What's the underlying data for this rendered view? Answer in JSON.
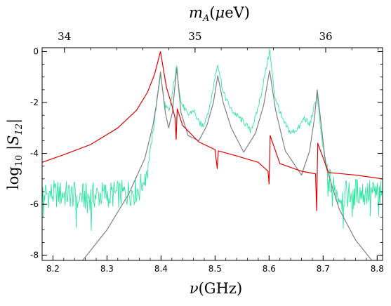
{
  "chart_data": {
    "type": "line",
    "xlabel": "ν(GHz)",
    "ylabel": "log10 |S12|",
    "top_xlabel": "m_A(μeV)",
    "xlim": [
      8.18,
      8.81
    ],
    "ylim": [
      -8.2,
      0.15
    ],
    "x_ticks": [
      8.2,
      8.3,
      8.4,
      8.5,
      8.6,
      8.7,
      8.8
    ],
    "x_tick_labels": [
      "8.2",
      "8.3",
      "8.4",
      "8.5",
      "8.6",
      "8.7",
      "8.8"
    ],
    "y_ticks": [
      0,
      -2,
      -4,
      -6,
      -8
    ],
    "y_tick_labels": [
      "0",
      "-2",
      "-4",
      "-6",
      "-8"
    ],
    "top_ticks_mueV": [
      34,
      35,
      36
    ],
    "top_tick_labels": [
      "34",
      "35",
      "36"
    ],
    "top_axis_GHz_per_mueV": 0.2418,
    "grid": false,
    "colors": {
      "measured": "#2ee6a0",
      "theory_gray": "#808080",
      "theory_red": "#e00000"
    },
    "resonances": [
      {
        "nu": 8.399,
        "peak_gray": -0.8,
        "peak_green": -0.9,
        "red_peak": 0.0,
        "red_kind": "peak"
      },
      {
        "nu": 8.429,
        "peak_gray": -0.65,
        "peak_green": -0.6,
        "red_min": -3.45,
        "red_max": -2.25
      },
      {
        "nu": 8.505,
        "peak_gray": -0.95,
        "peak_green": -0.45,
        "red_min": -4.6,
        "red_max": -3.9
      },
      {
        "nu": 8.601,
        "peak_gray": -0.75,
        "peak_green": 0.05,
        "red_min": -5.2,
        "red_max": -3.3
      },
      {
        "nu": 8.689,
        "peak_gray": -1.5,
        "peak_green": -1.7,
        "red_min": -6.25,
        "red_max": -3.6
      }
    ],
    "series": [
      {
        "key": "measured",
        "points": [
          [
            8.18,
            -5.6
          ],
          [
            8.22,
            -5.6
          ],
          [
            8.26,
            -5.7
          ],
          [
            8.3,
            -5.6
          ],
          [
            8.33,
            -5.6
          ],
          [
            8.36,
            -5.4
          ],
          [
            8.375,
            -4.6
          ],
          [
            8.385,
            -3.2
          ],
          [
            8.392,
            -2.0
          ],
          [
            8.399,
            -0.9
          ],
          [
            8.406,
            -2.0
          ],
          [
            8.415,
            -2.4
          ],
          [
            8.429,
            -0.6
          ],
          [
            8.437,
            -2.0
          ],
          [
            8.45,
            -2.5
          ],
          [
            8.46,
            -2.3
          ],
          [
            8.47,
            -2.8
          ],
          [
            8.478,
            -2.9
          ],
          [
            8.49,
            -2.2
          ],
          [
            8.505,
            -0.45
          ],
          [
            8.515,
            -1.6
          ],
          [
            8.53,
            -2.3
          ],
          [
            8.545,
            -2.6
          ],
          [
            8.555,
            -2.8
          ],
          [
            8.565,
            -3.1
          ],
          [
            8.575,
            -2.6
          ],
          [
            8.585,
            -1.7
          ],
          [
            8.601,
            0.05
          ],
          [
            8.61,
            -1.7
          ],
          [
            8.625,
            -2.7
          ],
          [
            8.64,
            -3.2
          ],
          [
            8.655,
            -3.0
          ],
          [
            8.665,
            -2.6
          ],
          [
            8.675,
            -2.9
          ],
          [
            8.689,
            -1.7
          ],
          [
            8.697,
            -3.4
          ],
          [
            8.71,
            -5.0
          ],
          [
            8.73,
            -5.7
          ],
          [
            8.76,
            -5.5
          ],
          [
            8.81,
            -5.6
          ]
        ]
      },
      {
        "key": "theory_gray",
        "points": [
          [
            8.255,
            -8.2
          ],
          [
            8.3,
            -7.0
          ],
          [
            8.34,
            -5.6
          ],
          [
            8.37,
            -4.2
          ],
          [
            8.385,
            -2.9
          ],
          [
            8.392,
            -2.0
          ],
          [
            8.399,
            -0.8
          ],
          [
            8.408,
            -2.4
          ],
          [
            8.414,
            -3.0
          ],
          [
            8.421,
            -2.4
          ],
          [
            8.429,
            -0.65
          ],
          [
            8.437,
            -2.4
          ],
          [
            8.45,
            -3.3
          ],
          [
            8.47,
            -3.5
          ],
          [
            8.485,
            -2.9
          ],
          [
            8.497,
            -2.0
          ],
          [
            8.505,
            -0.95
          ],
          [
            8.515,
            -2.0
          ],
          [
            8.53,
            -3.0
          ],
          [
            8.553,
            -3.95
          ],
          [
            8.575,
            -3.2
          ],
          [
            8.59,
            -2.1
          ],
          [
            8.601,
            -0.75
          ],
          [
            8.612,
            -2.3
          ],
          [
            8.63,
            -3.9
          ],
          [
            8.66,
            -4.85
          ],
          [
            8.675,
            -3.9
          ],
          [
            8.684,
            -2.6
          ],
          [
            8.689,
            -1.5
          ],
          [
            8.695,
            -2.6
          ],
          [
            8.705,
            -4.5
          ],
          [
            8.73,
            -6.2
          ],
          [
            8.76,
            -7.4
          ],
          [
            8.79,
            -8.2
          ]
        ]
      },
      {
        "key": "theory_red",
        "points": [
          [
            8.18,
            -4.35
          ],
          [
            8.22,
            -4.05
          ],
          [
            8.27,
            -3.65
          ],
          [
            8.32,
            -3.0
          ],
          [
            8.355,
            -2.3
          ],
          [
            8.375,
            -1.6
          ],
          [
            8.388,
            -0.9
          ],
          [
            8.399,
            0.0
          ],
          [
            8.41,
            -1.4
          ],
          [
            8.42,
            -2.1
          ],
          [
            8.426,
            -2.6
          ],
          [
            8.428,
            -3.45
          ],
          [
            8.43,
            -2.25
          ],
          [
            8.44,
            -2.9
          ],
          [
            8.47,
            -3.55
          ],
          [
            8.5,
            -3.85
          ],
          [
            8.504,
            -4.6
          ],
          [
            8.506,
            -3.9
          ],
          [
            8.54,
            -4.1
          ],
          [
            8.58,
            -4.35
          ],
          [
            8.598,
            -4.7
          ],
          [
            8.6,
            -5.2
          ],
          [
            8.602,
            -3.3
          ],
          [
            8.62,
            -4.4
          ],
          [
            8.66,
            -4.7
          ],
          [
            8.686,
            -4.8
          ],
          [
            8.688,
            -6.25
          ],
          [
            8.69,
            -3.6
          ],
          [
            8.71,
            -4.75
          ],
          [
            8.76,
            -4.85
          ],
          [
            8.81,
            -5.0
          ]
        ]
      }
    ]
  }
}
